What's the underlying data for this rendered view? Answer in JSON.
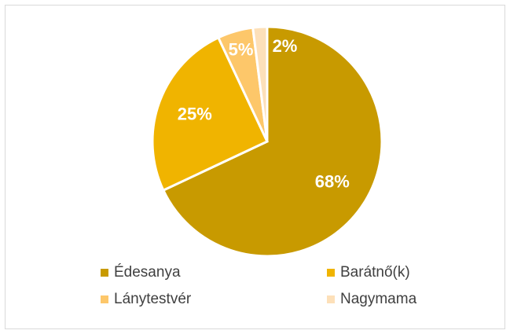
{
  "chart_data": {
    "type": "pie",
    "categories": [
      "Édesanya",
      "Barátnő(k)",
      "Lánytestvér",
      "Nagymama"
    ],
    "values": [
      68,
      25,
      5,
      2
    ],
    "value_labels": [
      "68%",
      "25%",
      "5%",
      "2%"
    ],
    "colors": [
      "#c89a00",
      "#f0b400",
      "#fdc76a",
      "#fde0b9"
    ],
    "legend": "bottom"
  }
}
